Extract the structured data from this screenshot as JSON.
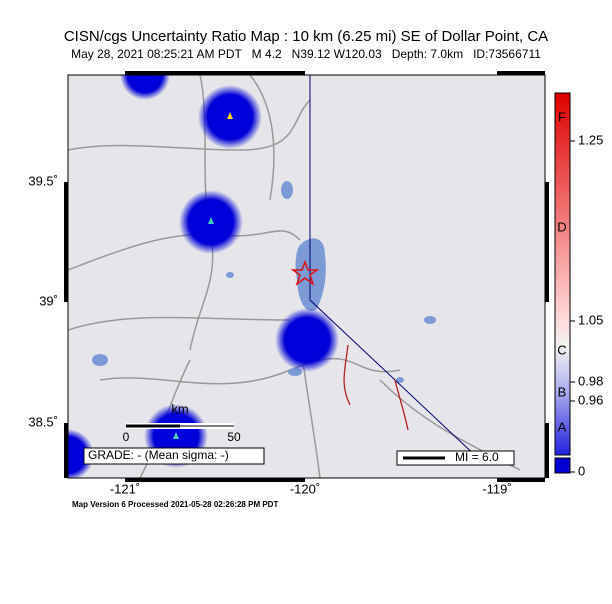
{
  "header": {
    "title": "CISN/cgs Uncertainty Ratio Map : 10 km (6.25 mi) SE of Dollar Point, CA",
    "subtitle": "May 28, 2021 08:25:21 AM PDT   M 4.2   N39.12 W120.03   Depth: 7.0km   ID:73566711"
  },
  "map": {
    "latitude_labels": [
      "39.5˚",
      "39˚",
      "38.5˚"
    ],
    "longitude_labels": [
      "-121˚",
      "-120˚",
      "-119˚"
    ],
    "scale_bar": {
      "unit": "km",
      "start": "0",
      "end": "50"
    },
    "grade": "GRADE: - (Mean sigma: -)",
    "legend": "MI = 6.0"
  },
  "colorbar": {
    "letters": [
      "F",
      "D",
      "C",
      "B",
      "A"
    ],
    "ticks": [
      "1.25",
      "1.05",
      "0.98",
      "0.96",
      "0"
    ]
  },
  "footer": "Map Version 6 Processed 2021-05-28 02:26:28 PM PDT"
}
